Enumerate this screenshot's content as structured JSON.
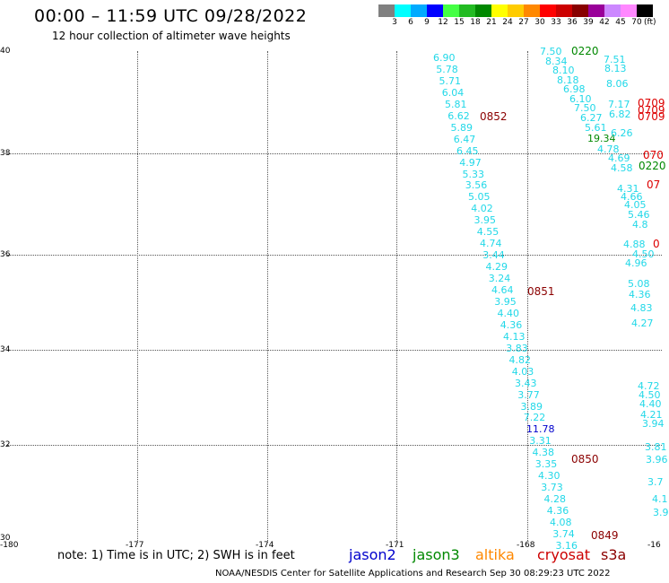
{
  "header": {
    "title": "00:00 – 11:59 UTC 09/28/2022",
    "subtitle": "12 hour collection of altimeter wave heights"
  },
  "colorscale": {
    "colors": [
      "#808080",
      "#00ffff",
      "#00aaff",
      "#0000ff",
      "#44ff44",
      "#22bb22",
      "#008800",
      "#ffff00",
      "#ffcc00",
      "#ff8800",
      "#ff0000",
      "#cc0000",
      "#880000",
      "#990099",
      "#cc88ff",
      "#ff88ff",
      "#000000"
    ],
    "labels": [
      "3",
      "6",
      "9",
      "12",
      "15",
      "18",
      "21",
      "24",
      "27",
      "30",
      "33",
      "36",
      "39",
      "42",
      "45",
      "70"
    ],
    "unit": "(ft)"
  },
  "axes": {
    "lat_labels": [
      "40",
      "38",
      "36",
      "34",
      "32",
      "30"
    ],
    "lon_labels": [
      "-180",
      "-177",
      "-174",
      "-171",
      "-168",
      "-16"
    ]
  },
  "track_values": [
    "6.90",
    "5.78",
    "5.71",
    "6.04",
    "5.81",
    "6.62",
    "5.89",
    "6.47",
    "6.45",
    "4.97",
    "5.33",
    "3.56",
    "5.05",
    "4.02",
    "3.95",
    "4.55",
    "4.74",
    "3.44",
    "4.29",
    "3.24",
    "4.64",
    "3.95",
    "4.40",
    "4.36",
    "4.13",
    "3.83",
    "4.82",
    "4.03",
    "3.43",
    "3.77",
    "3.89",
    "7.22",
    "11.78",
    "3.31",
    "4.38",
    "3.35",
    "4.30",
    "3.73",
    "4.28",
    "4.36",
    "4.08",
    "3.74",
    "3.16"
  ],
  "track2_values": [
    "7.50",
    "8.34",
    "8.10",
    "8.18",
    "6.98",
    "6.10",
    "7.50",
    "6.27",
    "5.61",
    "19.34",
    "7.51",
    "8.13",
    "8.06",
    "7.17",
    "6.82",
    "6.26"
  ],
  "track3_values": [
    "4.78",
    "4.69",
    "4.58",
    "4.31",
    "4.66",
    "4.05",
    "5.46",
    "4.8",
    "4.88",
    "4.50",
    "4.96",
    "5.08",
    "4.36",
    "4.83",
    "4.27",
    "4.72",
    "4.50",
    "4.40",
    "4.21",
    "3.94",
    "3.81",
    "3.96",
    "3.7",
    "4.1",
    "3.9"
  ],
  "time_labels": [
    "0852",
    "0851",
    "0850",
    "0849",
    "0220",
    "0220",
    "0709",
    "0709",
    "0709",
    "070",
    "07",
    "0"
  ],
  "notes": {
    "note": "note: 1) Time is in UTC; 2) SWH is in feet",
    "satellites": [
      {
        "name": "jason2",
        "color": "#0000cc"
      },
      {
        "name": "jason3",
        "color": "#008800"
      },
      {
        "name": "altika",
        "color": "#ff8800"
      },
      {
        "name": "cryosat",
        "color": "#cc0000"
      },
      {
        "name": "s3a",
        "color": "#8b0000"
      }
    ],
    "credit": "NOAA/NESDIS Center for Satellite Applications and Research    Sep 30 08:29:23 UTC 2022"
  }
}
